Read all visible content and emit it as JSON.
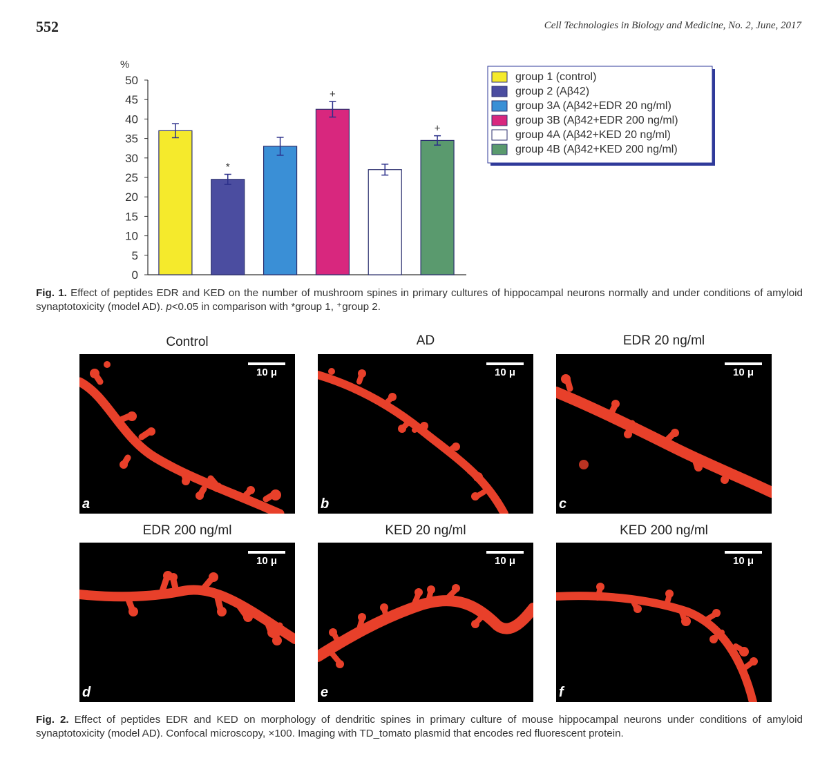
{
  "page": {
    "number": "552",
    "journal": "Cell Technologies in Biology and Medicine, No. 2, June, 2017"
  },
  "chart_data": {
    "type": "bar",
    "ylabel": "%",
    "ylim": [
      0,
      50
    ],
    "yticks": [
      0,
      5,
      10,
      15,
      20,
      25,
      30,
      35,
      40,
      45,
      50
    ],
    "categories": [
      "group 1 (control)",
      "group 2 (Aβ42)",
      "group 3A (Aβ42+EDR 20 ng/ml)",
      "group 3B (Aβ42+EDR 200 ng/ml)",
      "group 4A (Aβ42+KED 20 ng/ml)",
      "group 4B (Aβ42+KED 200 ng/ml)"
    ],
    "values": [
      37,
      24.5,
      33,
      42.5,
      27,
      34.5
    ],
    "errors": [
      1.8,
      1.3,
      2.3,
      2.0,
      1.4,
      1.2
    ],
    "annotations": [
      "",
      "*",
      "",
      "+",
      "",
      "+"
    ],
    "colors": [
      "#f5ea2c",
      "#4b4da0",
      "#3a8fd6",
      "#d8277e",
      "#ffffff",
      "#5a9a6e"
    ],
    "legend_position": "top-right",
    "grid": false
  },
  "fig1_caption": {
    "label": "Fig. 1.",
    "text": " Effect of peptides EDR and KED on the number of mushroom spines in primary cultures of hippocampal neurons normally and under conditions of amyloid synaptotoxicity (model AD). ",
    "p": "p",
    "tail": "<0.05 in comparison with *group 1, ⁺group 2."
  },
  "panels": [
    {
      "title": "Control",
      "letter": "a",
      "scale": "10 μ"
    },
    {
      "title": "AD",
      "letter": "b",
      "scale": "10 μ"
    },
    {
      "title": "EDR 20 ng/ml",
      "letter": "c",
      "scale": "10 μ"
    },
    {
      "title": "EDR 200 ng/ml",
      "letter": "d",
      "scale": "10 μ"
    },
    {
      "title": "KED 20 ng/ml",
      "letter": "e",
      "scale": "10 μ"
    },
    {
      "title": "KED 200 ng/ml",
      "letter": "f",
      "scale": "10 μ"
    }
  ],
  "fig2_caption": {
    "label": "Fig. 2.",
    "text": " Effect of peptides EDR and KED on morphology of dendritic spines in primary culture of mouse hippocampal neurons under conditions of amyloid synaptotoxicity (model AD). Confocal microscopy, ×100. Imaging with TD_tomato plasmid that encodes red fluorescent protein."
  },
  "colors": {
    "dendrite": "#e8402a",
    "background": "#000000"
  }
}
